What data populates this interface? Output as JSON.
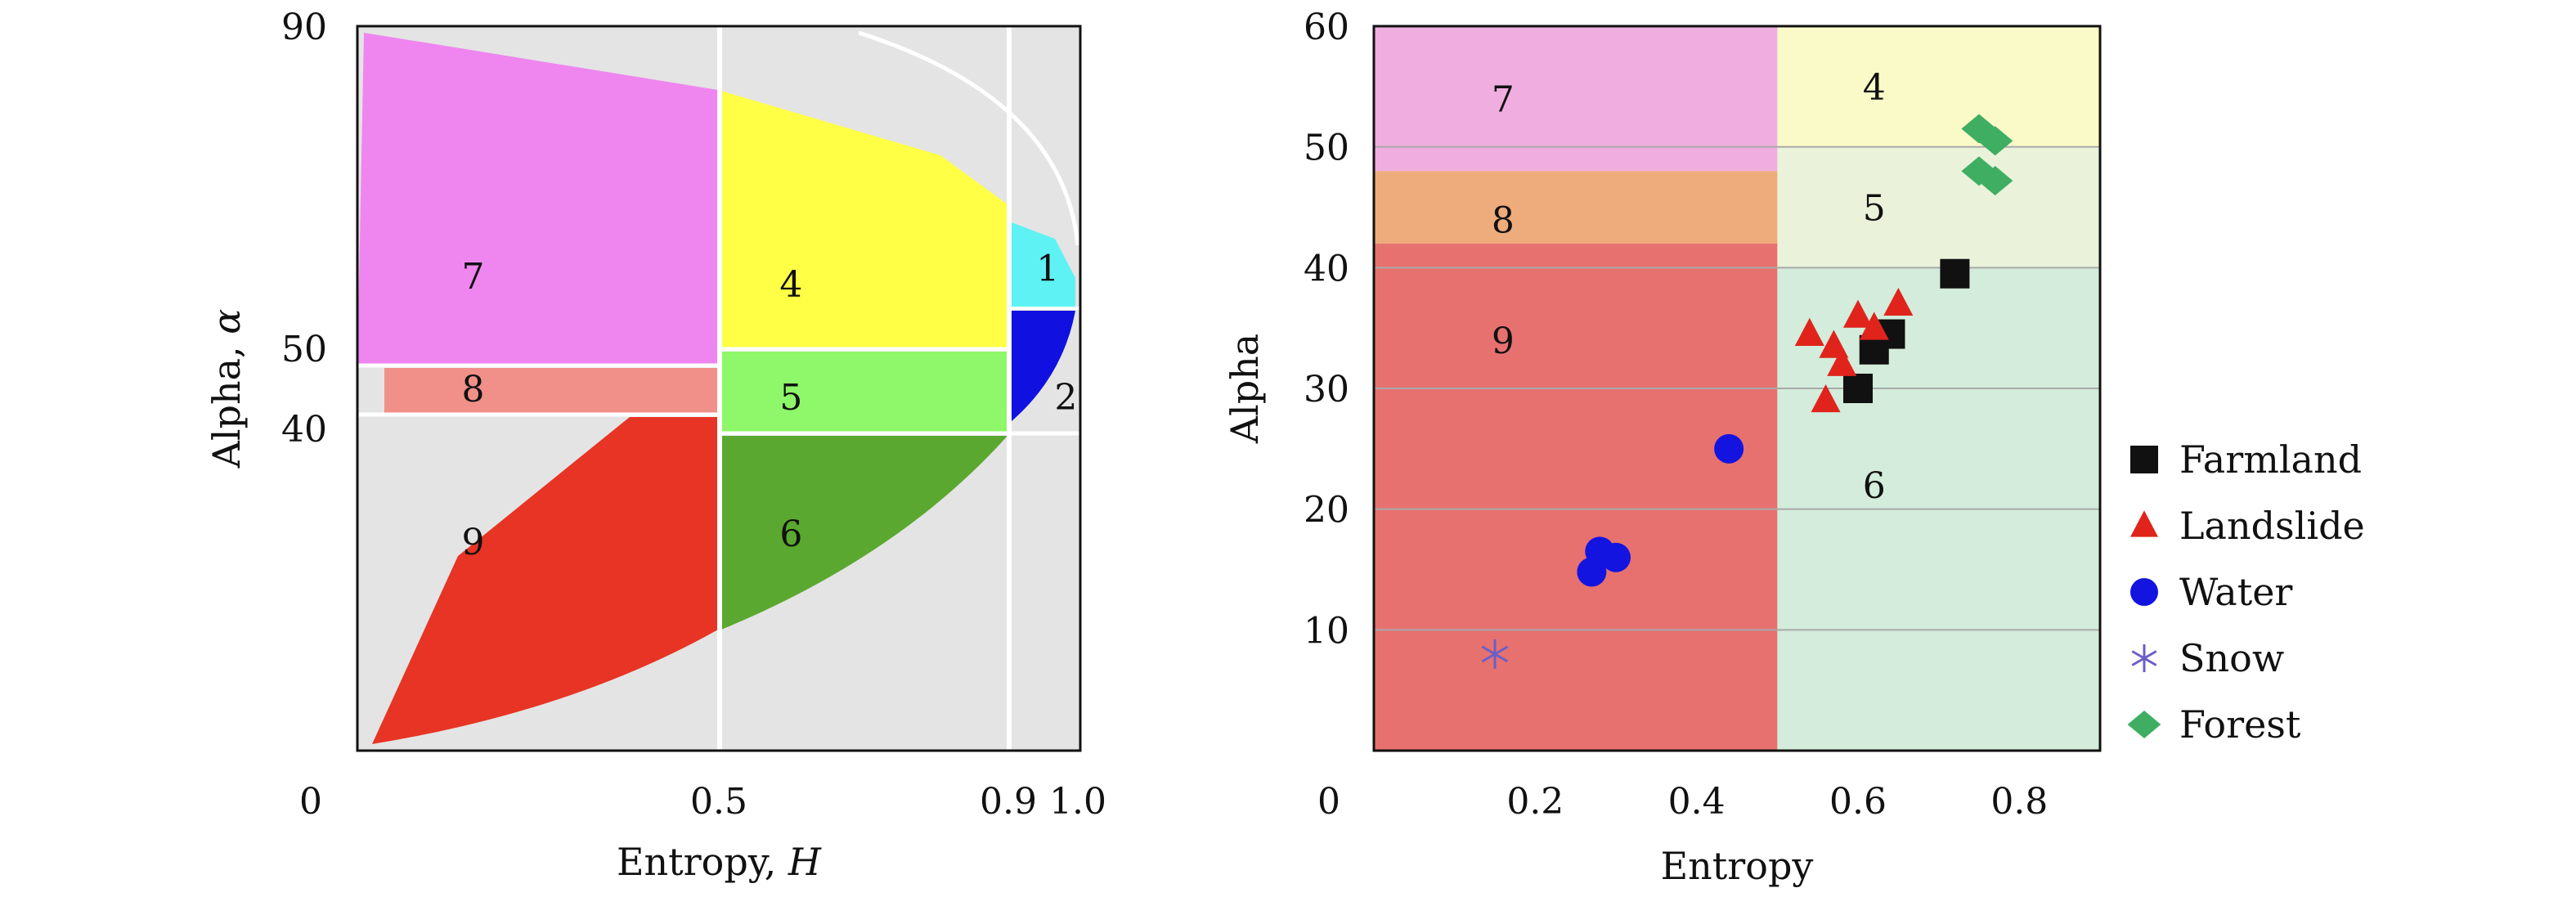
{
  "chart_data": [
    {
      "type": "heatmap",
      "subtype": "H-alpha plane",
      "xlabel": "Entropy, ",
      "xlabel_var": "H",
      "ylabel": "Alpha, ",
      "ylabel_var": "α",
      "xlim": [
        0,
        1.0
      ],
      "ylim": [
        0,
        90
      ],
      "xticks": [
        {
          "value": 0,
          "label": "0"
        },
        {
          "value": 0.5,
          "label": "0.5"
        },
        {
          "value": 0.9,
          "label": "0.9"
        },
        {
          "value": 1.0,
          "label": "1.0"
        }
      ],
      "yticks": [
        {
          "value": 40,
          "label": "40"
        },
        {
          "value": 50,
          "label": "50"
        },
        {
          "value": 90,
          "label": "90"
        }
      ],
      "zones": [
        {
          "id": "1",
          "color": "#5ef2f4",
          "label": "1",
          "label_at": [
            0.955,
            60
          ]
        },
        {
          "id": "2",
          "color": "#1010e0",
          "label": "2",
          "label_at": [
            0.98,
            44
          ]
        },
        {
          "id": "4",
          "color": "#ffff46",
          "label": "4",
          "label_at": [
            0.6,
            58
          ]
        },
        {
          "id": "5",
          "color": "#8ef76a",
          "label": "5",
          "label_at": [
            0.6,
            44
          ]
        },
        {
          "id": "6",
          "color": "#5aa830",
          "label": "6",
          "label_at": [
            0.6,
            27
          ]
        },
        {
          "id": "7",
          "color": "#ef86ef",
          "label": "7",
          "label_at": [
            0.16,
            59
          ]
        },
        {
          "id": "8",
          "color": "#f09088",
          "label": "8",
          "label_at": [
            0.16,
            45
          ]
        },
        {
          "id": "9",
          "color": "#e73424",
          "label": "9",
          "label_at": [
            0.16,
            26
          ]
        }
      ],
      "background": "#e4e4e4",
      "grid": false
    },
    {
      "type": "scatter",
      "xlabel": "Entropy",
      "ylabel": "Alpha",
      "xlim": [
        0,
        0.9
      ],
      "ylim": [
        0,
        60
      ],
      "xticks": [
        {
          "value": 0,
          "label": "0"
        },
        {
          "value": 0.2,
          "label": "0.2"
        },
        {
          "value": 0.4,
          "label": "0.4"
        },
        {
          "value": 0.6,
          "label": "0.6"
        },
        {
          "value": 0.8,
          "label": "0.8"
        }
      ],
      "yticks": [
        {
          "value": 10,
          "label": "10"
        },
        {
          "value": 20,
          "label": "20"
        },
        {
          "value": 30,
          "label": "30"
        },
        {
          "value": 40,
          "label": "40"
        },
        {
          "value": 50,
          "label": "50"
        },
        {
          "value": 60,
          "label": "60"
        }
      ],
      "grid_y": true,
      "regions": [
        {
          "label": "7",
          "x": [
            0,
            0.5
          ],
          "y": [
            48,
            60
          ],
          "color": "#f0aee0",
          "label_at": [
            0.16,
            54
          ]
        },
        {
          "label": "8",
          "x": [
            0,
            0.5
          ],
          "y": [
            42,
            48
          ],
          "color": "#eeac7c",
          "label_at": [
            0.16,
            44
          ]
        },
        {
          "label": "9",
          "x": [
            0,
            0.5
          ],
          "y": [
            0,
            42
          ],
          "color": "#e7716f",
          "label_at": [
            0.16,
            34
          ]
        },
        {
          "label": "4",
          "x": [
            0.5,
            0.9
          ],
          "y": [
            50,
            60
          ],
          "color": "#fafac8",
          "label_at": [
            0.62,
            55
          ]
        },
        {
          "label": "5",
          "x": [
            0.5,
            0.9
          ],
          "y": [
            40,
            50
          ],
          "color": "#eaf3da",
          "label_at": [
            0.62,
            45
          ]
        },
        {
          "label": "6",
          "x": [
            0.5,
            0.9
          ],
          "y": [
            0,
            40
          ],
          "color": "#d3ecdb",
          "label_at": [
            0.62,
            22
          ]
        }
      ],
      "legend_position": "right",
      "series": [
        {
          "name": "Farmland",
          "marker": "square",
          "color": "#111111",
          "points": [
            [
              0.72,
              39.5
            ],
            [
              0.64,
              34.5
            ],
            [
              0.62,
              33.2
            ],
            [
              0.6,
              30
            ]
          ]
        },
        {
          "name": "Landslide",
          "marker": "triangle",
          "color": "#e0241c",
          "points": [
            [
              0.54,
              34.5
            ],
            [
              0.57,
              33.5
            ],
            [
              0.58,
              32
            ],
            [
              0.6,
              36
            ],
            [
              0.62,
              35
            ],
            [
              0.65,
              37
            ],
            [
              0.56,
              29
            ]
          ]
        },
        {
          "name": "Water",
          "marker": "circle",
          "color": "#1414e0",
          "points": [
            [
              0.44,
              25
            ],
            [
              0.28,
              16.5
            ],
            [
              0.3,
              16
            ],
            [
              0.27,
              14.8
            ]
          ]
        },
        {
          "name": "Snow",
          "marker": "asterisk",
          "color": "#6a5fc8",
          "points": [
            [
              0.15,
              8
            ]
          ]
        },
        {
          "name": "Forest",
          "marker": "diamond",
          "color": "#3fae62",
          "points": [
            [
              0.75,
              51.5
            ],
            [
              0.77,
              50.5
            ],
            [
              0.75,
              48
            ],
            [
              0.77,
              47.2
            ]
          ]
        }
      ]
    }
  ]
}
